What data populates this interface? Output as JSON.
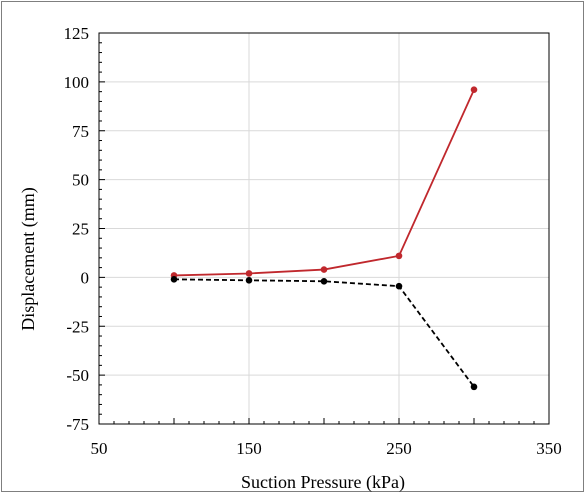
{
  "chart_data": {
    "type": "line",
    "title": "",
    "xlabel": "Suction Pressure (kPa)",
    "ylabel": "Displacement (mm)",
    "xlim": [
      50,
      350
    ],
    "ylim": [
      -75,
      125
    ],
    "x_ticks": [
      50,
      150,
      250,
      350
    ],
    "y_ticks": [
      -75,
      -50,
      -25,
      0,
      25,
      50,
      75,
      100,
      125
    ],
    "x_tick_labels": [
      "50",
      "150",
      "250",
      "350"
    ],
    "y_tick_labels": [
      "-75",
      "-50",
      "-25",
      "0",
      "25",
      "50",
      "75",
      "100",
      "125"
    ],
    "grid": true,
    "legend": "none",
    "series": [
      {
        "style": "solid",
        "color": "#c0282d",
        "x": [
          100,
          150,
          200,
          250,
          300
        ],
        "values": [
          1,
          2,
          4,
          11,
          96
        ]
      },
      {
        "style": "dashed",
        "color": "#000000",
        "x": [
          100,
          150,
          200,
          250,
          300
        ],
        "values": [
          -1,
          -1.5,
          -2,
          -4.5,
          -56
        ]
      }
    ]
  }
}
